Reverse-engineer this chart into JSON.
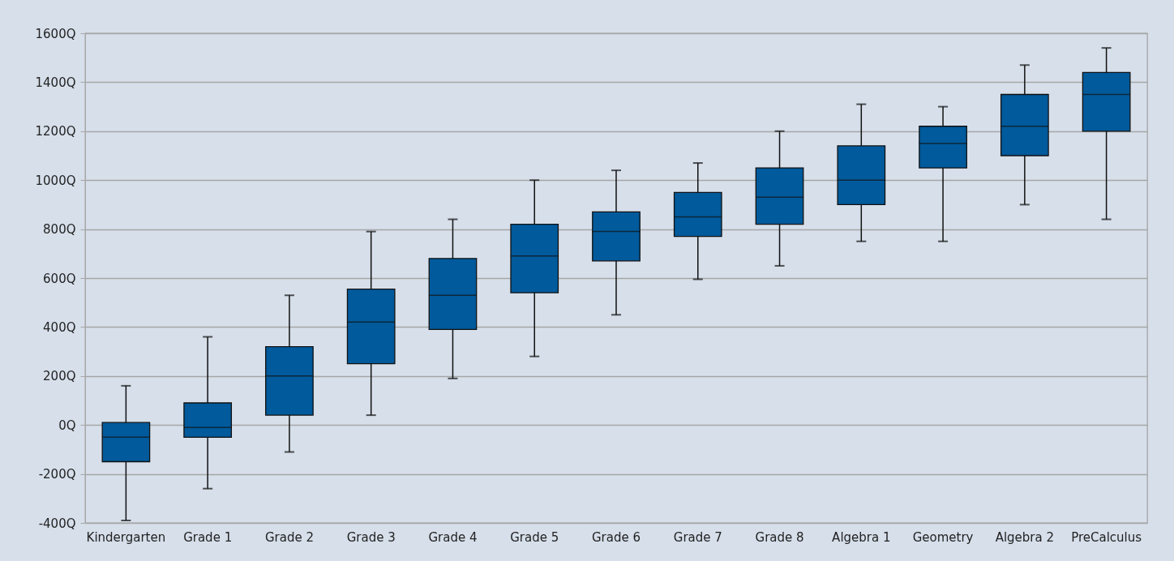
{
  "chart_data": {
    "type": "box",
    "categories": [
      "Kindergarten",
      "Grade 1",
      "Grade 2",
      "Grade 3",
      "Grade 4",
      "Grade 5",
      "Grade 6",
      "Grade 7",
      "Grade 8",
      "Algebra 1",
      "Geometry",
      "Algebra 2",
      "PreCalculus"
    ],
    "color": "#005a9c",
    "boxes": [
      {
        "low": -390,
        "q1": -150,
        "median": -50,
        "q3": 10,
        "high": 160
      },
      {
        "low": -260,
        "q1": -50,
        "median": -10,
        "q3": 90,
        "high": 360
      },
      {
        "low": -110,
        "q1": 40,
        "median": 200,
        "q3": 320,
        "high": 530
      },
      {
        "low": 40,
        "q1": 250,
        "median": 420,
        "q3": 555,
        "high": 790
      },
      {
        "low": 190,
        "q1": 390,
        "median": 530,
        "q3": 680,
        "high": 840
      },
      {
        "low": 280,
        "q1": 540,
        "median": 690,
        "q3": 820,
        "high": 1000
      },
      {
        "low": 450,
        "q1": 670,
        "median": 790,
        "q3": 870,
        "high": 1040
      },
      {
        "low": 595,
        "q1": 770,
        "median": 850,
        "q3": 950,
        "high": 1070
      },
      {
        "low": 650,
        "q1": 820,
        "median": 930,
        "q3": 1050,
        "high": 1200
      },
      {
        "low": 750,
        "q1": 900,
        "median": 1000,
        "q3": 1140,
        "high": 1310
      },
      {
        "low": 750,
        "q1": 1050,
        "median": 1150,
        "q3": 1220,
        "high": 1300
      },
      {
        "low": 900,
        "q1": 1100,
        "median": 1220,
        "q3": 1350,
        "high": 1470
      },
      {
        "low": 840,
        "q1": 1200,
        "median": 1350,
        "q3": 1440,
        "high": 1540
      }
    ],
    "ylim": [
      -400,
      1600
    ],
    "yticks": [
      {
        "value": -400,
        "label": "-400Q"
      },
      {
        "value": -200,
        "label": "-200Q"
      },
      {
        "value": 0,
        "label": "0Q"
      },
      {
        "value": 200,
        "label": "200Q"
      },
      {
        "value": 400,
        "label": "400Q"
      },
      {
        "value": 600,
        "label": "600Q"
      },
      {
        "value": 800,
        "label": "800Q"
      },
      {
        "value": 1000,
        "label": "1000Q"
      },
      {
        "value": 1200,
        "label": "1200Q"
      },
      {
        "value": 1400,
        "label": "1400Q"
      },
      {
        "value": 1600,
        "label": "1600Q"
      }
    ],
    "grid": "y"
  }
}
